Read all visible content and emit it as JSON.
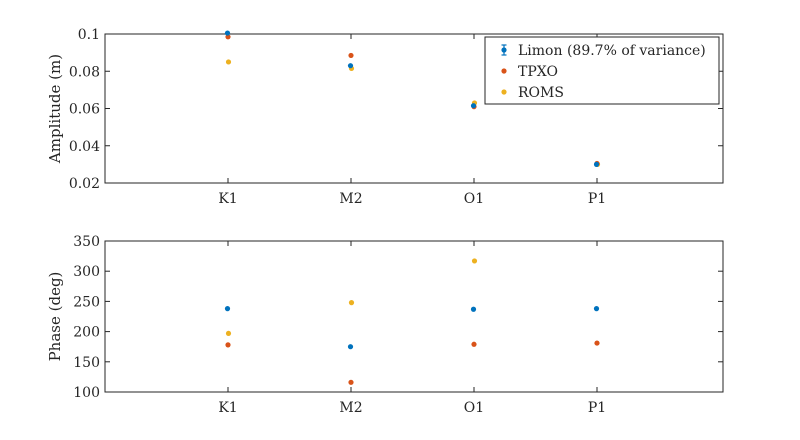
{
  "colors": {
    "limon": "#0072BD",
    "tpxo": "#D95319",
    "roms": "#EDB120",
    "axis": "#262626"
  },
  "chart_data": [
    {
      "type": "scatter",
      "title": "",
      "xlabel": "",
      "ylabel": "Amplitude (m)",
      "categories": [
        "K1",
        "M2",
        "O1",
        "P1"
      ],
      "ylim": [
        0.02,
        0.1
      ],
      "yticks": [
        0.02,
        0.04,
        0.06,
        0.08,
        0.1
      ],
      "ytick_labels": [
        "0.02",
        "0.04",
        "0.06",
        "0.08",
        "0.1"
      ],
      "grid": false,
      "legend": {
        "placement": "top-right",
        "entries": [
          "Limon (89.7% of variance)",
          "TPXO",
          "ROMS"
        ]
      },
      "series": [
        {
          "name": "Limon (89.7% of variance)",
          "color_key": "limon",
          "marker": "point-with-errorbar",
          "values": [
            0.1005,
            0.083,
            0.0615,
            0.03
          ]
        },
        {
          "name": "TPXO",
          "color_key": "tpxo",
          "marker": "point",
          "values": [
            0.0985,
            0.0885,
            0.061,
            0.0305
          ]
        },
        {
          "name": "ROMS",
          "color_key": "roms",
          "marker": "point",
          "values": [
            0.085,
            0.0815,
            0.063,
            0.03
          ]
        }
      ]
    },
    {
      "type": "scatter",
      "title": "",
      "xlabel": "",
      "ylabel": "Phase (deg)",
      "categories": [
        "K1",
        "M2",
        "O1",
        "P1"
      ],
      "ylim": [
        100,
        350
      ],
      "yticks": [
        100,
        150,
        200,
        250,
        300,
        350
      ],
      "ytick_labels": [
        "100",
        "150",
        "200",
        "250",
        "300",
        "350"
      ],
      "grid": false,
      "series": [
        {
          "name": "Limon (89.7% of variance)",
          "color_key": "limon",
          "marker": "point-with-errorbar",
          "values": [
            238,
            175,
            237,
            238
          ]
        },
        {
          "name": "TPXO",
          "color_key": "tpxo",
          "marker": "point",
          "values": [
            178,
            116,
            179,
            181
          ]
        },
        {
          "name": "ROMS",
          "color_key": "roms",
          "marker": "point",
          "values": [
            197,
            248,
            317,
            null
          ]
        }
      ]
    }
  ]
}
